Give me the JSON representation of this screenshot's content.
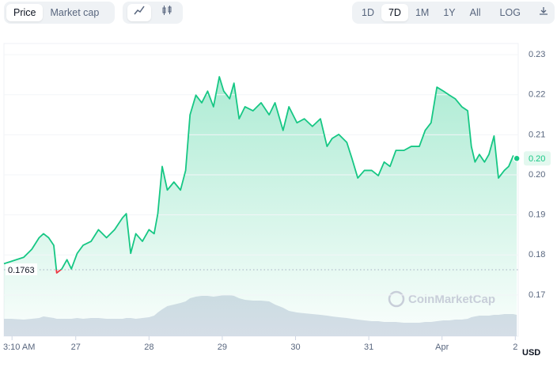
{
  "toolbar": {
    "left": [
      "Price",
      "Market cap"
    ],
    "ranges": [
      "1D",
      "7D",
      "1M",
      "1Y",
      "All"
    ],
    "log": "LOG"
  },
  "chart_data": {
    "type": "line",
    "currency_label": "USD",
    "watermark": "CoinMarketCap",
    "x": [
      0.02,
      0.12,
      0.29,
      0.4,
      0.5,
      0.56,
      0.63,
      0.7,
      0.74,
      0.81,
      0.88,
      0.94,
      1.02,
      1.1,
      1.21,
      1.31,
      1.42,
      1.53,
      1.64,
      1.69,
      1.75,
      1.82,
      1.91,
      2.0,
      2.07,
      2.12,
      2.18,
      2.25,
      2.34,
      2.43,
      2.5,
      2.56,
      2.64,
      2.72,
      2.8,
      2.88,
      2.96,
      3.02,
      3.1,
      3.16,
      3.23,
      3.31,
      3.42,
      3.53,
      3.64,
      3.72,
      3.83,
      3.91,
      4.02,
      4.12,
      4.23,
      4.34,
      4.43,
      4.5,
      4.59,
      4.7,
      4.77,
      4.85,
      4.94,
      5.04,
      5.13,
      5.21,
      5.29,
      5.37,
      5.48,
      5.58,
      5.69,
      5.77,
      5.85,
      5.93,
      6.02,
      6.1,
      6.18,
      6.27,
      6.35,
      6.4,
      6.45,
      6.51,
      6.58,
      6.64,
      6.71,
      6.77,
      6.85,
      6.91,
      6.97,
      7.02
    ],
    "series": [
      {
        "color": "#16c784",
        "values": [
          0.1778,
          0.1784,
          0.1794,
          0.1814,
          0.1843,
          0.1853,
          0.1843,
          0.1824,
          0.1755,
          0.1765,
          0.1788,
          0.1765,
          0.1804,
          0.1824,
          0.1834,
          0.1863,
          0.1843,
          0.1863,
          0.1893,
          0.1903,
          0.1804,
          0.1853,
          0.1834,
          0.1863,
          0.1853,
          0.1903,
          0.2021,
          0.1962,
          0.1982,
          0.1962,
          0.2011,
          0.215,
          0.2199,
          0.218,
          0.2209,
          0.217,
          0.2245,
          0.2209,
          0.219,
          0.2229,
          0.214,
          0.217,
          0.216,
          0.218,
          0.215,
          0.218,
          0.2111,
          0.217,
          0.213,
          0.214,
          0.2121,
          0.214,
          0.2071,
          0.2091,
          0.2101,
          0.2081,
          0.2041,
          0.1992,
          0.2011,
          0.2011,
          0.1998,
          0.2032,
          0.2021,
          0.2061,
          0.2061,
          0.2071,
          0.2071,
          0.2111,
          0.213,
          0.2219,
          0.2209,
          0.2199,
          0.219,
          0.217,
          0.216,
          0.2071,
          0.2032,
          0.2051,
          0.2032,
          0.2051,
          0.2097,
          0.1992,
          0.2011,
          0.2021,
          0.2047,
          0.2041
        ]
      },
      {
        "color": "#cfd6e4",
        "values": [
          22,
          22,
          21,
          22,
          23,
          25,
          24,
          23,
          22,
          22,
          22,
          22,
          23,
          22,
          23,
          23,
          22,
          22,
          22,
          23,
          23,
          22,
          23,
          24,
          26,
          30,
          34,
          38,
          40,
          42,
          44,
          48,
          50,
          51,
          51,
          50,
          51,
          52,
          52,
          51,
          48,
          46,
          45,
          45,
          44,
          40,
          36,
          32,
          30,
          29,
          28,
          27,
          26,
          25,
          24,
          23,
          22,
          21,
          20,
          19,
          19,
          18,
          18,
          18,
          17,
          17,
          17,
          18,
          18,
          19,
          20,
          20,
          21,
          21,
          22,
          24,
          25,
          26,
          26,
          26,
          27,
          27,
          28,
          28,
          28,
          27
        ]
      }
    ],
    "baseline": {
      "value": 0.1763,
      "label": "0.1763"
    },
    "current_price": {
      "value": 0.2041,
      "label": "0.20"
    },
    "xlim": [
      0.02,
      7.04
    ],
    "xticks": [
      {
        "value": 0.13,
        "label": "3:10 AM"
      },
      1,
      2,
      3,
      4,
      5,
      {
        "value": 6,
        "label": "Apr"
      },
      7
    ],
    "xtick_labels": [
      "27",
      "28",
      "29",
      "30",
      "31",
      "2"
    ],
    "ylim": [
      0.1597,
      0.2328
    ],
    "yticks": [
      0.17,
      0.18,
      0.19,
      {
        "value": 0.2,
        "label": "0.20"
      },
      0.21,
      0.22,
      0.23
    ],
    "grid": true
  }
}
